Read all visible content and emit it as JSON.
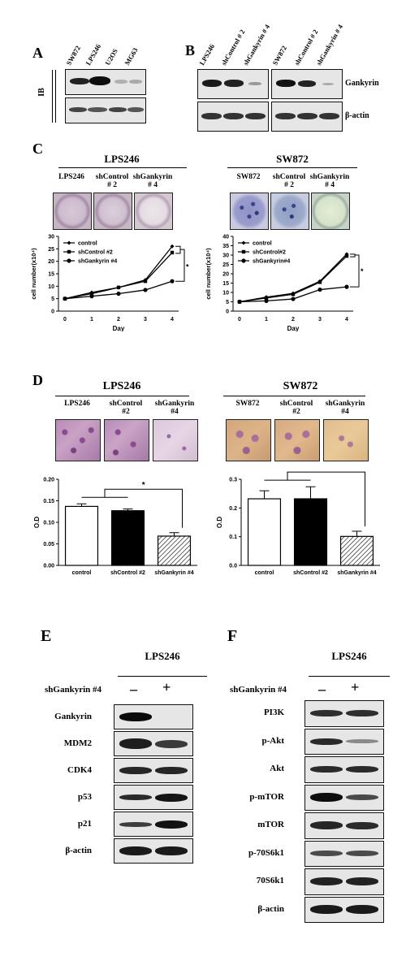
{
  "panel_A": {
    "label": "A",
    "lanes": [
      "SW872",
      "LPS246",
      "U2OS",
      "MG63"
    ],
    "side_label": "IB"
  },
  "panel_B": {
    "label": "B",
    "lanes_left": [
      "LPS246",
      "shControl # 2",
      "shGankyrin # 4"
    ],
    "lanes_right": [
      "SW872",
      "shControl # 2",
      "shGankyrin # 4"
    ],
    "rows": [
      "Gankyrin",
      "β-actin"
    ]
  },
  "panel_C": {
    "label": "C",
    "left": {
      "title": "LPS246",
      "subs": [
        "LPS246",
        "shControl\n# 2",
        "shGankyrin\n# 4"
      ]
    },
    "right": {
      "title": "SW872",
      "subs": [
        "SW872",
        "shControl\n# 2",
        "shGankyrin\n# 4"
      ]
    }
  },
  "panel_D": {
    "label": "D",
    "left": {
      "title": "LPS246",
      "subs": [
        "LPS246",
        "shControl\n#2",
        "shGankyrin\n#4"
      ]
    },
    "right": {
      "title": "SW872",
      "subs": [
        "SW872",
        "shControl\n#2",
        "shGankyrin\n#4"
      ]
    }
  },
  "panel_E": {
    "label": "E",
    "title": "LPS246",
    "treatment": "shGankyrin #4",
    "signs": [
      "–",
      "+"
    ],
    "rows": [
      "Gankyrin",
      "MDM2",
      "CDK4",
      "p53",
      "p21",
      "β-actin"
    ]
  },
  "panel_F": {
    "label": "F",
    "title": "LPS246",
    "treatment": "shGankyrin #4",
    "signs": [
      "–",
      "+"
    ],
    "rows": [
      "PI3K",
      "p-Akt",
      "Akt",
      "p-mTOR",
      "mTOR",
      "p-70S6k1",
      "70S6k1",
      "β-actin"
    ]
  },
  "chart_data": [
    {
      "type": "line",
      "panel": "C-left",
      "xlabel": "Day",
      "ylabel": "cell number(x10⁴)",
      "x": [
        0,
        1,
        2,
        3,
        4
      ],
      "ylim": [
        0,
        30
      ],
      "yticks": [
        0,
        5,
        10,
        15,
        20,
        25,
        30
      ],
      "series": [
        {
          "name": "control",
          "values": [
            5,
            7.5,
            9.5,
            12.5,
            26
          ]
        },
        {
          "name": "shControl #2",
          "values": [
            5,
            7,
            9.5,
            12,
            23.5
          ]
        },
        {
          "name": "shGankyrin #4",
          "values": [
            5,
            6,
            7,
            8.5,
            12
          ]
        }
      ],
      "annotation": "*"
    },
    {
      "type": "line",
      "panel": "C-right",
      "xlabel": "Day",
      "ylabel": "cell number(x10⁴)",
      "x": [
        0,
        1,
        2,
        3,
        4
      ],
      "ylim": [
        0,
        40
      ],
      "yticks": [
        0,
        5,
        10,
        15,
        20,
        25,
        30,
        35,
        40
      ],
      "series": [
        {
          "name": "control",
          "values": [
            5,
            7.5,
            9.5,
            16,
            30.5
          ]
        },
        {
          "name": "shControl#2",
          "values": [
            5,
            7,
            9,
            15.5,
            29.5
          ]
        },
        {
          "name": "shGankyrin#4",
          "values": [
            5,
            5.5,
            6.5,
            11.5,
            13
          ]
        }
      ],
      "annotation": "*"
    },
    {
      "type": "bar",
      "panel": "D-left",
      "ylabel": "O.D",
      "categories": [
        "control",
        "shControl #2",
        "shGankyrin #4"
      ],
      "values": [
        0.137,
        0.127,
        0.068
      ],
      "errors": [
        0.006,
        0.004,
        0.008
      ],
      "ylim": [
        0,
        0.2
      ],
      "yticks": [
        "0.00",
        "0.05",
        "0.10",
        "0.15",
        "0.20"
      ],
      "annotation": "*"
    },
    {
      "type": "bar",
      "panel": "D-right",
      "ylabel": "O.D",
      "categories": [
        "control",
        "shControl #2",
        "shGankyrin #4"
      ],
      "values": [
        0.232,
        0.232,
        0.101
      ],
      "errors": [
        0.028,
        0.042,
        0.018
      ],
      "ylim": [
        0,
        0.3
      ],
      "yticks": [
        "0.0",
        "0.1",
        "0.2",
        "0.3"
      ],
      "annotation": "*"
    }
  ]
}
